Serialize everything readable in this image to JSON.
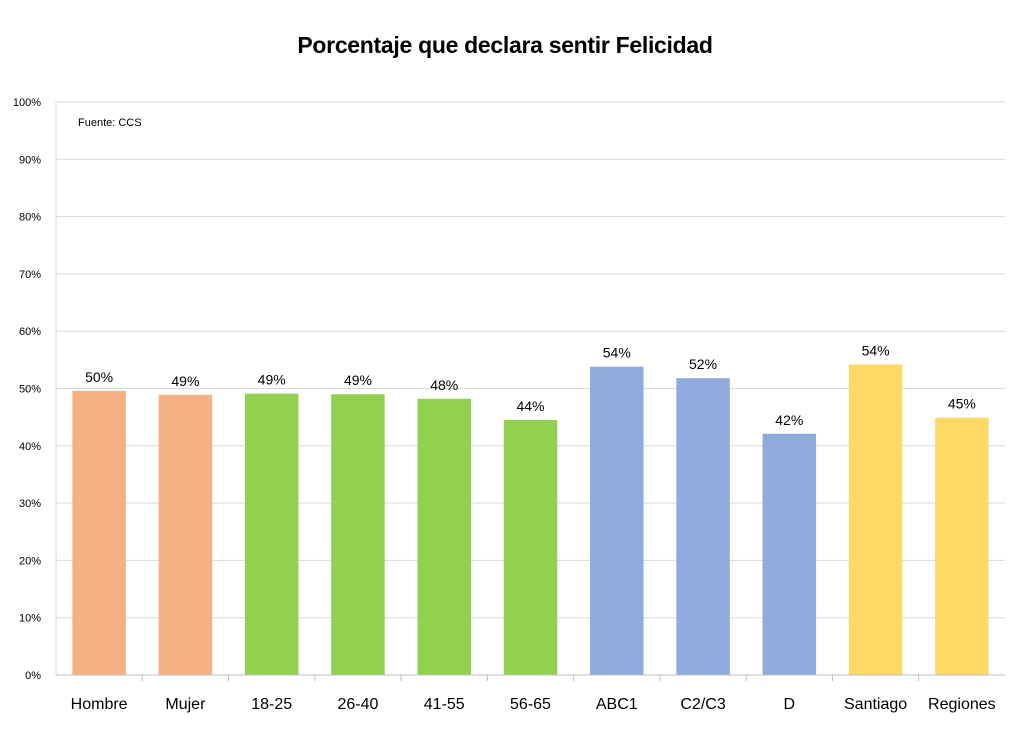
{
  "chart_data": {
    "type": "bar",
    "title": "Porcentaje que declara sentir Felicidad",
    "note": "Fuente: CCS",
    "categories": [
      "Hombre",
      "Mujer",
      "18-25",
      "26-40",
      "41-55",
      "56-65",
      "ABC1",
      "C2/C3",
      "D",
      "Santiago",
      "Regiones"
    ],
    "values": [
      49.6,
      48.9,
      49.1,
      49.0,
      48.2,
      44.5,
      53.8,
      51.8,
      42.1,
      54.2,
      44.9
    ],
    "labels": [
      "50%",
      "49%",
      "49%",
      "49%",
      "48%",
      "44%",
      "54%",
      "52%",
      "42%",
      "54%",
      "45%"
    ],
    "colors": [
      "#F4B183",
      "#F4B183",
      "#92D050",
      "#92D050",
      "#92D050",
      "#92D050",
      "#8FAADC",
      "#8FAADC",
      "#8FAADC",
      "#FFD966",
      "#FFD966"
    ],
    "ylim": [
      0,
      100
    ],
    "yticks": [
      0,
      10,
      20,
      30,
      40,
      50,
      60,
      70,
      80,
      90,
      100
    ],
    "ytick_labels": [
      "0%",
      "10%",
      "20%",
      "30%",
      "40%",
      "50%",
      "60%",
      "70%",
      "80%",
      "90%",
      "100%"
    ],
    "grid": true,
    "xlabel": "",
    "ylabel": ""
  }
}
